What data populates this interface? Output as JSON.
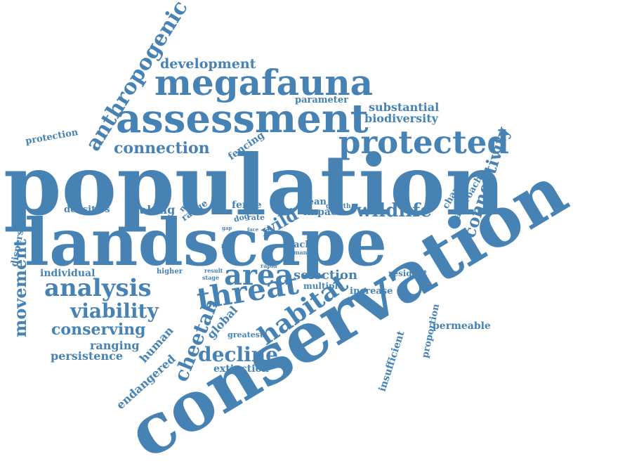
{
  "color": "#4682b4",
  "words": [
    "conservation",
    "population",
    "landscape",
    "assessment",
    "megafauna",
    "protected",
    "anthropogenic",
    "development",
    "connection",
    "protection",
    "parameter",
    "substantial",
    "biodiversity",
    "connectivity",
    "fencing",
    "wildlife",
    "wild",
    "area",
    "threat",
    "analysis",
    "viability",
    "conserving",
    "ranging",
    "persistence",
    "movement",
    "disperser",
    "densities",
    "making",
    "more",
    "range",
    "fence",
    "dog",
    "rate",
    "slow",
    "mean",
    "growth",
    "impact",
    "change",
    "approach",
    "individual",
    "higher",
    "result",
    "stage",
    "rapid",
    "pack",
    "many",
    "selection",
    "multiple",
    "resident",
    "increase",
    "habitat",
    "global",
    "greatest",
    "human",
    "cheetah",
    "decline",
    "endangered",
    "extinction",
    "insufficient",
    "proportion",
    "permeable",
    "gap",
    "face",
    "level"
  ]
}
